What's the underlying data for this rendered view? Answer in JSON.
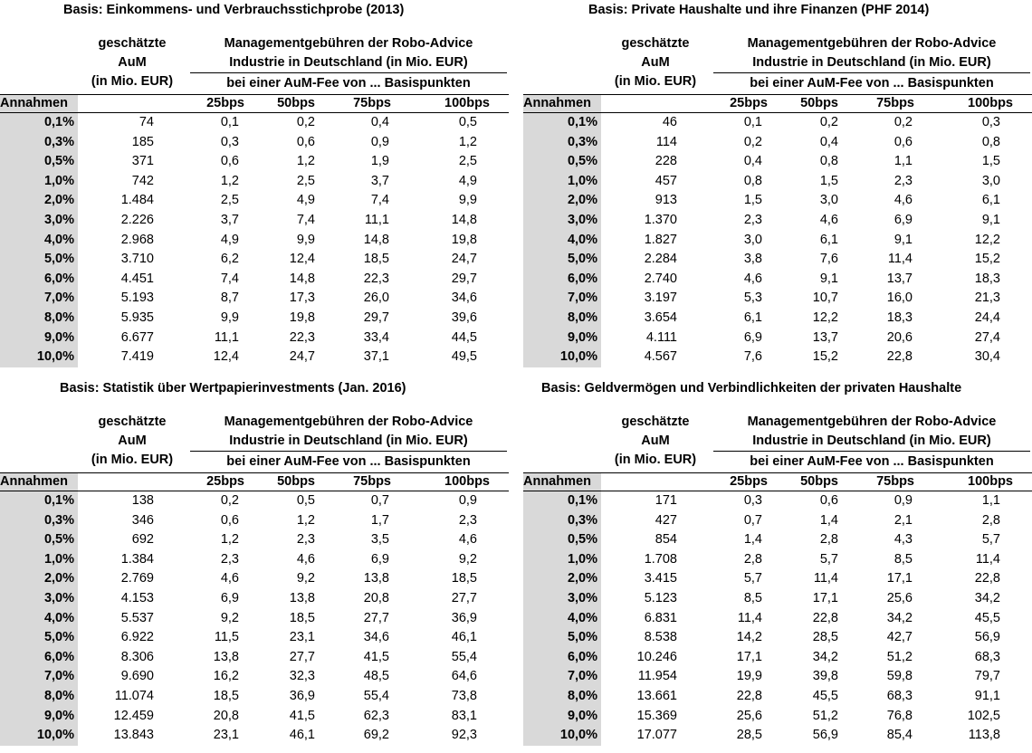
{
  "headers": {
    "aum": [
      "geschätzte",
      "AuM",
      "(in Mio. EUR)"
    ],
    "mgmt": [
      "Managementgebühren der Robo-Advice",
      "Industrie in Deutschland (in Mio. EUR)"
    ],
    "fee": "bei einer AuM-Fee von ... Basispunkten",
    "annahmen": "Annahmen",
    "bps": [
      "25bps",
      "50bps",
      "75bps",
      "100bps"
    ]
  },
  "panels": [
    {
      "title": "Basis: Einkommens- und Verbrauchsstichprobe (2013)",
      "rows": [
        [
          "0,1%",
          "74",
          "0,1",
          "0,2",
          "0,4",
          "0,5"
        ],
        [
          "0,3%",
          "185",
          "0,3",
          "0,6",
          "0,9",
          "1,2"
        ],
        [
          "0,5%",
          "371",
          "0,6",
          "1,2",
          "1,9",
          "2,5"
        ],
        [
          "1,0%",
          "742",
          "1,2",
          "2,5",
          "3,7",
          "4,9"
        ],
        [
          "2,0%",
          "1.484",
          "2,5",
          "4,9",
          "7,4",
          "9,9"
        ],
        [
          "3,0%",
          "2.226",
          "3,7",
          "7,4",
          "11,1",
          "14,8"
        ],
        [
          "4,0%",
          "2.968",
          "4,9",
          "9,9",
          "14,8",
          "19,8"
        ],
        [
          "5,0%",
          "3.710",
          "6,2",
          "12,4",
          "18,5",
          "24,7"
        ],
        [
          "6,0%",
          "4.451",
          "7,4",
          "14,8",
          "22,3",
          "29,7"
        ],
        [
          "7,0%",
          "5.193",
          "8,7",
          "17,3",
          "26,0",
          "34,6"
        ],
        [
          "8,0%",
          "5.935",
          "9,9",
          "19,8",
          "29,7",
          "39,6"
        ],
        [
          "9,0%",
          "6.677",
          "11,1",
          "22,3",
          "33,4",
          "44,5"
        ],
        [
          "10,0%",
          "7.419",
          "12,4",
          "24,7",
          "37,1",
          "49,5"
        ]
      ]
    },
    {
      "title": "Basis: Private Haushalte und ihre Finanzen (PHF 2014)",
      "rows": [
        [
          "0,1%",
          "46",
          "0,1",
          "0,2",
          "0,2",
          "0,3"
        ],
        [
          "0,3%",
          "114",
          "0,2",
          "0,4",
          "0,6",
          "0,8"
        ],
        [
          "0,5%",
          "228",
          "0,4",
          "0,8",
          "1,1",
          "1,5"
        ],
        [
          "1,0%",
          "457",
          "0,8",
          "1,5",
          "2,3",
          "3,0"
        ],
        [
          "2,0%",
          "913",
          "1,5",
          "3,0",
          "4,6",
          "6,1"
        ],
        [
          "3,0%",
          "1.370",
          "2,3",
          "4,6",
          "6,9",
          "9,1"
        ],
        [
          "4,0%",
          "1.827",
          "3,0",
          "6,1",
          "9,1",
          "12,2"
        ],
        [
          "5,0%",
          "2.284",
          "3,8",
          "7,6",
          "11,4",
          "15,2"
        ],
        [
          "6,0%",
          "2.740",
          "4,6",
          "9,1",
          "13,7",
          "18,3"
        ],
        [
          "7,0%",
          "3.197",
          "5,3",
          "10,7",
          "16,0",
          "21,3"
        ],
        [
          "8,0%",
          "3.654",
          "6,1",
          "12,2",
          "18,3",
          "24,4"
        ],
        [
          "9,0%",
          "4.111",
          "6,9",
          "13,7",
          "20,6",
          "27,4"
        ],
        [
          "10,0%",
          "4.567",
          "7,6",
          "15,2",
          "22,8",
          "30,4"
        ]
      ]
    },
    {
      "title": "Basis: Statistik über Wertpapierinvestments (Jan. 2016)",
      "rows": [
        [
          "0,1%",
          "138",
          "0,2",
          "0,5",
          "0,7",
          "0,9"
        ],
        [
          "0,3%",
          "346",
          "0,6",
          "1,2",
          "1,7",
          "2,3"
        ],
        [
          "0,5%",
          "692",
          "1,2",
          "2,3",
          "3,5",
          "4,6"
        ],
        [
          "1,0%",
          "1.384",
          "2,3",
          "4,6",
          "6,9",
          "9,2"
        ],
        [
          "2,0%",
          "2.769",
          "4,6",
          "9,2",
          "13,8",
          "18,5"
        ],
        [
          "3,0%",
          "4.153",
          "6,9",
          "13,8",
          "20,8",
          "27,7"
        ],
        [
          "4,0%",
          "5.537",
          "9,2",
          "18,5",
          "27,7",
          "36,9"
        ],
        [
          "5,0%",
          "6.922",
          "11,5",
          "23,1",
          "34,6",
          "46,1"
        ],
        [
          "6,0%",
          "8.306",
          "13,8",
          "27,7",
          "41,5",
          "55,4"
        ],
        [
          "7,0%",
          "9.690",
          "16,2",
          "32,3",
          "48,5",
          "64,6"
        ],
        [
          "8,0%",
          "11.074",
          "18,5",
          "36,9",
          "55,4",
          "73,8"
        ],
        [
          "9,0%",
          "12.459",
          "20,8",
          "41,5",
          "62,3",
          "83,1"
        ],
        [
          "10,0%",
          "13.843",
          "23,1",
          "46,1",
          "69,2",
          "92,3"
        ]
      ]
    },
    {
      "title": "Basis: Geldvermögen und Verbindlichkeiten der privaten Haushalte",
      "rows": [
        [
          "0,1%",
          "171",
          "0,3",
          "0,6",
          "0,9",
          "1,1"
        ],
        [
          "0,3%",
          "427",
          "0,7",
          "1,4",
          "2,1",
          "2,8"
        ],
        [
          "0,5%",
          "854",
          "1,4",
          "2,8",
          "4,3",
          "5,7"
        ],
        [
          "1,0%",
          "1.708",
          "2,8",
          "5,7",
          "8,5",
          "11,4"
        ],
        [
          "2,0%",
          "3.415",
          "5,7",
          "11,4",
          "17,1",
          "22,8"
        ],
        [
          "3,0%",
          "5.123",
          "8,5",
          "17,1",
          "25,6",
          "34,2"
        ],
        [
          "4,0%",
          "6.831",
          "11,4",
          "22,8",
          "34,2",
          "45,5"
        ],
        [
          "5,0%",
          "8.538",
          "14,2",
          "28,5",
          "42,7",
          "56,9"
        ],
        [
          "6,0%",
          "10.246",
          "17,1",
          "34,2",
          "51,2",
          "68,3"
        ],
        [
          "7,0%",
          "11.954",
          "19,9",
          "39,8",
          "59,8",
          "79,7"
        ],
        [
          "8,0%",
          "13.661",
          "22,8",
          "45,5",
          "68,3",
          "91,1"
        ],
        [
          "9,0%",
          "15.369",
          "25,6",
          "51,2",
          "76,8",
          "102,5"
        ],
        [
          "10,0%",
          "17.077",
          "28,5",
          "56,9",
          "85,4",
          "113,8"
        ]
      ]
    }
  ]
}
